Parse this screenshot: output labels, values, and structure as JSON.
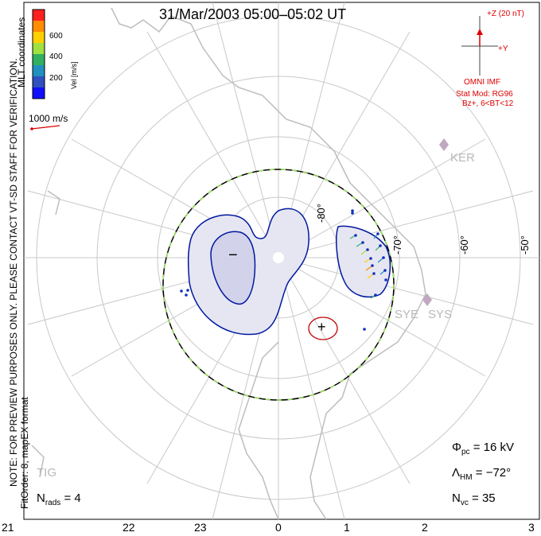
{
  "title": "31/Mar/2003 05:00–05:02 UT",
  "legend": {
    "label": "Vel [m/s]",
    "ticks": [
      "600",
      "400",
      "200"
    ],
    "colors": [
      "#ff2020",
      "#ff8c00",
      "#ffd000",
      "#a0e040",
      "#30b060",
      "#2090c0",
      "#3050c0",
      "#1010ff"
    ]
  },
  "coords_label": "MLT coordinates",
  "note_lines": [
    "NOTE: FOR PREVIEW PURPOSES ONLY. PLEASE CONTACT VT-SD STAFF FOR VERIFICATION.",
    "FitOrder: 8, mapEX format"
  ],
  "vector_scale": "1000 m/s",
  "imf": {
    "z_label": "+Z (20 nT)",
    "y_label": "+Y",
    "source": "OMNI IMF",
    "model_line1": "Stat Mod: RG96",
    "model_line2": "Bz+, 6<BT<12"
  },
  "latitude_labels": [
    "-80°",
    "-70°",
    "-60°",
    "-50°"
  ],
  "stations": [
    "KER",
    "SYE",
    "SYS",
    "TIG"
  ],
  "convection_markers": [
    "−",
    "+"
  ],
  "hour_labels": [
    "21",
    "22",
    "23",
    "0",
    "1",
    "2",
    "3"
  ],
  "stats": {
    "phi_symbol": "Φ",
    "phi_sub": "pc",
    "phi_value": "= 16 kV",
    "lambda_symbol": "Λ",
    "lambda_sub": "HM",
    "lambda_value": "= −72°",
    "nvc_symbol": "N",
    "nvc_sub": "vc",
    "nvc_value": "= 35",
    "nrads_symbol": "N",
    "nrads_sub": "rads",
    "nrads_value": "= 4"
  },
  "colors": {
    "contour": "#0018a0",
    "fill": "#e6e6f2",
    "fill_dark": "#d2d2ea",
    "positive": "#c00000",
    "grid": "#c8c8c8",
    "coast": "#bdbdbd"
  }
}
